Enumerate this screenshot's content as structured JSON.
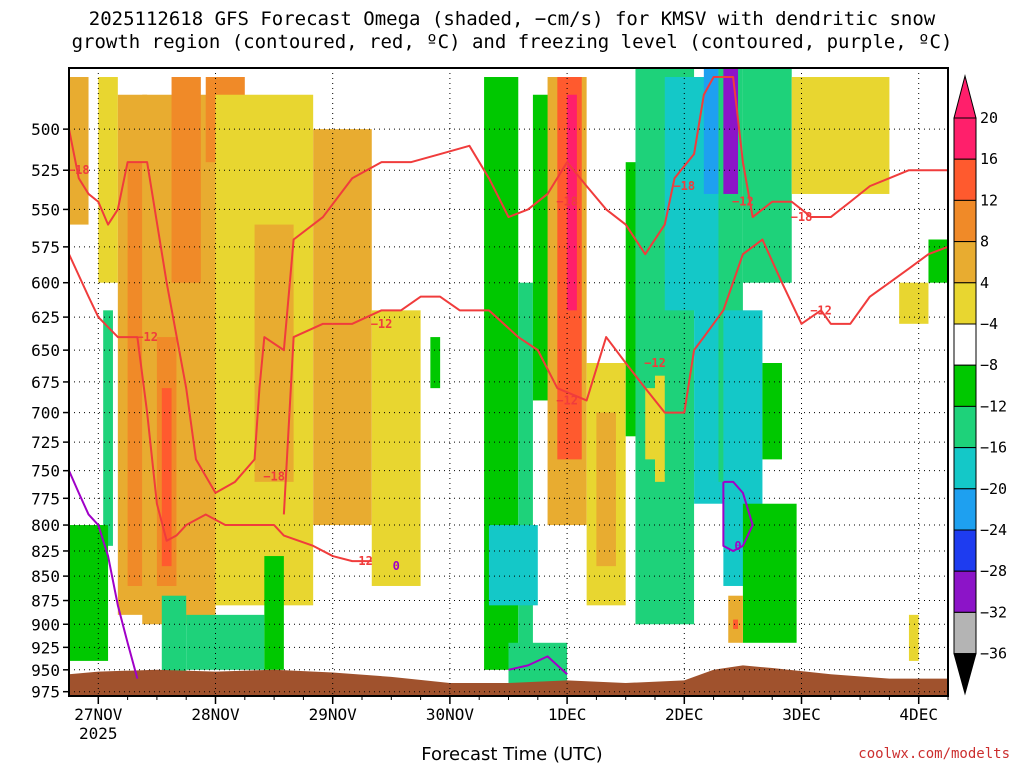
{
  "title_line1": "2025112618 GFS Forecast Omega (shaded, −cm/s) for KMSV with dendritic snow",
  "title_line2": "growth region (contoured, red, ºC) and freezing level (contoured, purple, ºC)",
  "xlabel": "Forecast Time (UTC)",
  "credit": "coolwx.com/modelts",
  "chart_data": {
    "type": "heatmap",
    "x_ticks": [
      "27NOV",
      "28NOV",
      "29NOV",
      "30NOV",
      "1DEC",
      "2DEC",
      "3DEC",
      "4DEC"
    ],
    "x_year": "2025",
    "x_hours_range": [
      -6,
      174
    ],
    "y_ticks": [
      500,
      525,
      550,
      575,
      600,
      625,
      650,
      675,
      700,
      725,
      750,
      775,
      800,
      825,
      850,
      875,
      900,
      925,
      950,
      975
    ],
    "y_range_hPa": [
      465,
      980
    ],
    "colorbar": {
      "ticks": [
        "20",
        "16",
        "12",
        "8",
        "4",
        "−4",
        "−8",
        "−12",
        "−16",
        "−20",
        "−24",
        "−28",
        "−32",
        "−36"
      ],
      "colors": [
        "#ff1f6b",
        "#ff5a2e",
        "#f08a28",
        "#e8ac30",
        "#e8d630",
        "#ffffff",
        "#00c800",
        "#1ed27a",
        "#14c8c8",
        "#1ea0f0",
        "#1e3cf0",
        "#8c14c8",
        "#b400c8",
        "#b4b4b4"
      ]
    },
    "omega_cells": [
      {
        "h0": -6,
        "h1": -2,
        "p0": 470,
        "p1": 560,
        "omega": 6
      },
      {
        "h0": 0,
        "h1": 4,
        "p0": 470,
        "p1": 600,
        "omega": 5
      },
      {
        "h0": 1,
        "h1": 3,
        "p0": 620,
        "p1": 820,
        "omega": -10
      },
      {
        "h0": -6,
        "h1": 2,
        "p0": 800,
        "p1": 940,
        "omega": -6
      },
      {
        "h0": 4,
        "h1": 10,
        "p0": 480,
        "p1": 890,
        "omega": 6
      },
      {
        "h0": 6,
        "h1": 9,
        "p0": 520,
        "p1": 860,
        "omega": 11
      },
      {
        "h0": 9,
        "h1": 24,
        "p0": 480,
        "p1": 900,
        "omega": 6
      },
      {
        "h0": 12,
        "h1": 16,
        "p0": 640,
        "p1": 860,
        "omega": 10
      },
      {
        "h0": 13,
        "h1": 15,
        "p0": 680,
        "p1": 840,
        "omega": 14
      },
      {
        "h0": 15,
        "h1": 21,
        "p0": 470,
        "p1": 600,
        "omega": 11
      },
      {
        "h0": 22,
        "h1": 30,
        "p0": 470,
        "p1": 520,
        "omega": 12
      },
      {
        "h0": 24,
        "h1": 44,
        "p0": 480,
        "p1": 880,
        "omega": 5
      },
      {
        "h0": 32,
        "h1": 40,
        "p0": 560,
        "p1": 760,
        "omega": 9
      },
      {
        "h0": 44,
        "h1": 56,
        "p0": 500,
        "p1": 800,
        "omega": 6
      },
      {
        "h0": 48,
        "h1": 52,
        "p0": 560,
        "p1": 720,
        "omega": 9
      },
      {
        "h0": 56,
        "h1": 66,
        "p0": 620,
        "p1": 860,
        "omega": 5
      },
      {
        "h0": 13,
        "h1": 18,
        "p0": 870,
        "p1": 960,
        "omega": -8
      },
      {
        "h0": 18,
        "h1": 34,
        "p0": 890,
        "p1": 950,
        "omega": -8
      },
      {
        "h0": 34,
        "h1": 38,
        "p0": 830,
        "p1": 950,
        "omega": -6
      },
      {
        "h0": 68,
        "h1": 70,
        "p0": 640,
        "p1": 680,
        "omega": -6
      },
      {
        "h0": 79,
        "h1": 86,
        "p0": 470,
        "p1": 950,
        "omega": -6
      },
      {
        "h0": 86,
        "h1": 89,
        "p0": 600,
        "p1": 940,
        "omega": -8
      },
      {
        "h0": 80,
        "h1": 90,
        "p0": 800,
        "p1": 880,
        "omega": -12
      },
      {
        "h0": 85,
        "h1": 88,
        "p0": 820,
        "p1": 860,
        "omega": -14
      },
      {
        "h0": 84,
        "h1": 96,
        "p0": 920,
        "p1": 965,
        "omega": -8
      },
      {
        "h0": 89,
        "h1": 93,
        "p0": 480,
        "p1": 690,
        "omega": -6
      },
      {
        "h0": 92,
        "h1": 100,
        "p0": 470,
        "p1": 800,
        "omega": 8
      },
      {
        "h0": 94,
        "h1": 99,
        "p0": 470,
        "p1": 740,
        "omega": 14
      },
      {
        "h0": 95,
        "h1": 98,
        "p0": 480,
        "p1": 700,
        "omega": 17
      },
      {
        "h0": 96,
        "h1": 98,
        "p0": 480,
        "p1": 620,
        "omega": 20
      },
      {
        "h0": 100,
        "h1": 108,
        "p0": 660,
        "p1": 880,
        "omega": 5
      },
      {
        "h0": 102,
        "h1": 106,
        "p0": 700,
        "p1": 840,
        "omega": 9
      },
      {
        "h0": 108,
        "h1": 112,
        "p0": 520,
        "p1": 720,
        "omega": -6
      },
      {
        "h0": 110,
        "h1": 122,
        "p0": 460,
        "p1": 900,
        "omega": -8
      },
      {
        "h0": 116,
        "h1": 124,
        "p0": 470,
        "p1": 620,
        "omega": -12
      },
      {
        "h0": 122,
        "h1": 128,
        "p0": 470,
        "p1": 780,
        "omega": -12
      },
      {
        "h0": 124,
        "h1": 127,
        "p0": 460,
        "p1": 540,
        "omega": -18
      },
      {
        "h0": 127,
        "h1": 132,
        "p0": 460,
        "p1": 760,
        "omega": -10
      },
      {
        "h0": 128,
        "h1": 131,
        "p0": 460,
        "p1": 540,
        "omega": -24
      },
      {
        "h0": 128,
        "h1": 136,
        "p0": 620,
        "p1": 860,
        "omega": -12
      },
      {
        "h0": 132,
        "h1": 142,
        "p0": 460,
        "p1": 600,
        "omega": -8
      },
      {
        "h0": 136,
        "h1": 140,
        "p0": 660,
        "p1": 740,
        "omega": -6
      },
      {
        "h0": 132,
        "h1": 143,
        "p0": 780,
        "p1": 920,
        "omega": -6
      },
      {
        "h0": 129,
        "h1": 132,
        "p0": 870,
        "p1": 920,
        "omega": 6
      },
      {
        "h0": 130,
        "h1": 131,
        "p0": 895,
        "p1": 905,
        "omega": 14
      },
      {
        "h0": 142,
        "h1": 162,
        "p0": 470,
        "p1": 540,
        "omega": 5
      },
      {
        "h0": 164,
        "h1": 170,
        "p0": 600,
        "p1": 630,
        "omega": 5
      },
      {
        "h0": 170,
        "h1": 174,
        "p0": 570,
        "p1": 600,
        "omega": -6
      },
      {
        "h0": 166,
        "h1": 168,
        "p0": 890,
        "p1": 940,
        "omega": 5
      },
      {
        "h0": 112,
        "h1": 114,
        "p0": 680,
        "p1": 740,
        "omega": 5
      },
      {
        "h0": 114,
        "h1": 116,
        "p0": 670,
        "p1": 760,
        "omega": 5
      }
    ],
    "contours_red": [
      {
        "label": "−18",
        "points": [
          [
            -6,
            500
          ],
          [
            -4,
            530
          ],
          [
            -2,
            540
          ],
          [
            0,
            545
          ],
          [
            2,
            560
          ],
          [
            4,
            550
          ],
          [
            6,
            520
          ],
          [
            10,
            520
          ],
          [
            14,
            600
          ],
          [
            18,
            680
          ],
          [
            20,
            740
          ],
          [
            24,
            770
          ],
          [
            28,
            760
          ],
          [
            32,
            740
          ],
          [
            33,
            680
          ],
          [
            34,
            640
          ],
          [
            38,
            650
          ],
          [
            40,
            570
          ],
          [
            46,
            555
          ],
          [
            52,
            530
          ],
          [
            58,
            520
          ],
          [
            64,
            520
          ],
          [
            70,
            515
          ],
          [
            76,
            510
          ],
          [
            80,
            530
          ],
          [
            84,
            555
          ],
          [
            88,
            550
          ],
          [
            92,
            540
          ],
          [
            96,
            520
          ],
          [
            100,
            535
          ],
          [
            104,
            550
          ],
          [
            108,
            560
          ],
          [
            112,
            580
          ],
          [
            116,
            560
          ],
          [
            118,
            530
          ],
          [
            122,
            515
          ],
          [
            124,
            480
          ],
          [
            126,
            470
          ],
          [
            130,
            470
          ],
          [
            132,
            520
          ],
          [
            134,
            555
          ],
          [
            138,
            545
          ],
          [
            142,
            545
          ],
          [
            146,
            555
          ],
          [
            150,
            555
          ],
          [
            154,
            545
          ],
          [
            158,
            535
          ],
          [
            162,
            530
          ],
          [
            166,
            525
          ],
          [
            170,
            525
          ],
          [
            174,
            525
          ]
        ]
      },
      {
        "label": "−12",
        "points": [
          [
            -6,
            580
          ],
          [
            -2,
            610
          ],
          [
            0,
            625
          ],
          [
            4,
            640
          ],
          [
            8,
            640
          ],
          [
            10,
            700
          ],
          [
            12,
            780
          ],
          [
            14,
            815
          ],
          [
            16,
            810
          ],
          [
            18,
            800
          ],
          [
            22,
            790
          ],
          [
            26,
            800
          ],
          [
            30,
            800
          ],
          [
            36,
            800
          ],
          [
            38,
            810
          ],
          [
            44,
            820
          ],
          [
            48,
            830
          ],
          [
            52,
            835
          ],
          [
            56,
            835
          ]
        ]
      },
      {
        "label": "−12",
        "points": [
          [
            38,
            790
          ],
          [
            40,
            640
          ],
          [
            46,
            630
          ],
          [
            52,
            630
          ],
          [
            58,
            620
          ],
          [
            62,
            620
          ],
          [
            66,
            610
          ],
          [
            70,
            610
          ],
          [
            74,
            620
          ],
          [
            80,
            620
          ],
          [
            86,
            640
          ],
          [
            90,
            650
          ],
          [
            94,
            680
          ],
          [
            100,
            690
          ],
          [
            104,
            640
          ],
          [
            108,
            660
          ],
          [
            112,
            680
          ],
          [
            116,
            700
          ],
          [
            120,
            700
          ],
          [
            122,
            650
          ],
          [
            124,
            640
          ],
          [
            128,
            620
          ],
          [
            132,
            580
          ],
          [
            136,
            570
          ],
          [
            140,
            600
          ],
          [
            144,
            630
          ],
          [
            148,
            620
          ],
          [
            150,
            630
          ],
          [
            154,
            630
          ],
          [
            158,
            610
          ],
          [
            162,
            600
          ],
          [
            166,
            590
          ],
          [
            170,
            580
          ],
          [
            174,
            575
          ]
        ]
      }
    ],
    "contours_purple": [
      {
        "label": "",
        "points": [
          [
            -6,
            750
          ],
          [
            -4,
            770
          ],
          [
            -2,
            790
          ],
          [
            0,
            800
          ],
          [
            2,
            830
          ],
          [
            4,
            880
          ],
          [
            6,
            920
          ],
          [
            8,
            960
          ]
        ]
      },
      {
        "label": "0",
        "points": [
          [
            128,
            760
          ],
          [
            128,
            820
          ],
          [
            130,
            825
          ],
          [
            132,
            820
          ],
          [
            134,
            800
          ],
          [
            132,
            770
          ],
          [
            130,
            760
          ],
          [
            128,
            760
          ]
        ]
      },
      {
        "label": "",
        "points": [
          [
            84,
            950
          ],
          [
            88,
            945
          ],
          [
            92,
            935
          ],
          [
            96,
            955
          ]
        ]
      }
    ],
    "terrain_hPa": [
      [
        -6,
        955
      ],
      [
        0,
        952
      ],
      [
        12,
        950
      ],
      [
        24,
        952
      ],
      [
        36,
        950
      ],
      [
        48,
        953
      ],
      [
        60,
        958
      ],
      [
        72,
        965
      ],
      [
        84,
        965
      ],
      [
        96,
        962
      ],
      [
        108,
        965
      ],
      [
        120,
        962
      ],
      [
        126,
        950
      ],
      [
        132,
        945
      ],
      [
        138,
        948
      ],
      [
        150,
        955
      ],
      [
        162,
        960
      ],
      [
        174,
        960
      ]
    ],
    "contour_labels": [
      {
        "text": "−18",
        "h": -4,
        "p": 525
      },
      {
        "text": "−12",
        "h": 10,
        "p": 640
      },
      {
        "text": "−18",
        "h": 36,
        "p": 755
      },
      {
        "text": "−12",
        "h": 54,
        "p": 835
      },
      {
        "text": "−12",
        "h": 58,
        "p": 630
      },
      {
        "text": "−18",
        "h": 96,
        "p": 545
      },
      {
        "text": "−12",
        "h": 96,
        "p": 690
      },
      {
        "text": "−12",
        "h": 114,
        "p": 660
      },
      {
        "text": "−18",
        "h": 120,
        "p": 535
      },
      {
        "text": "−12",
        "h": 132,
        "p": 545
      },
      {
        "text": "−18",
        "h": 144,
        "p": 555
      },
      {
        "text": "−12",
        "h": 148,
        "p": 620
      },
      {
        "text": "0",
        "h": 131,
        "p": 820
      },
      {
        "text": "0",
        "h": 61,
        "p": 840
      }
    ]
  }
}
